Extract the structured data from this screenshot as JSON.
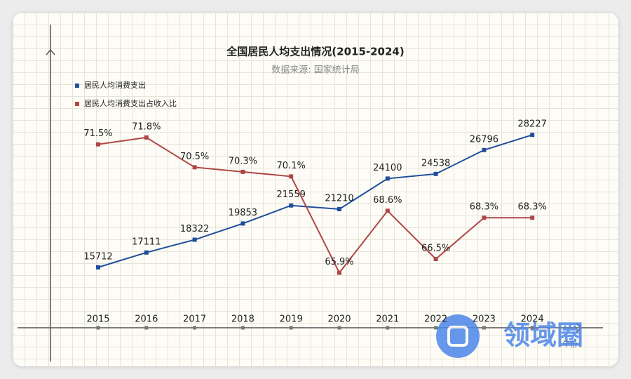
{
  "chart_data": {
    "type": "line",
    "title": "全国居民人均支出情况(2015-2024)",
    "subtitle": "数据来源: 国家统计局",
    "x_label": "年份",
    "watermark": "领域圈",
    "categories": [
      "2015",
      "2016",
      "2017",
      "2018",
      "2019",
      "2020",
      "2021",
      "2022",
      "2023",
      "2024"
    ],
    "series": [
      {
        "name": "居民人均消费支出",
        "color": "#1f4e9c",
        "values": [
          15712,
          17111,
          18322,
          19853,
          21559,
          21210,
          24100,
          24538,
          26796,
          28227
        ]
      },
      {
        "name": "居民人均消费支出占收入比",
        "color": "#b04646",
        "axis": "y2",
        "values": [
          71.5,
          71.8,
          70.5,
          70.3,
          70.1,
          65.9,
          68.6,
          66.5,
          68.3,
          68.3
        ],
        "value_labels": [
          "71.5%",
          "71.8%",
          "70.5%",
          "70.3%",
          "70.1%",
          "65.9%",
          "68.6%",
          "66.5%",
          "68.3%",
          "68.3%"
        ]
      }
    ],
    "ylim": [
      10000,
      36000
    ],
    "y2lim": [
      63.5,
      75.5
    ],
    "grid": true,
    "legend": "top-left"
  }
}
